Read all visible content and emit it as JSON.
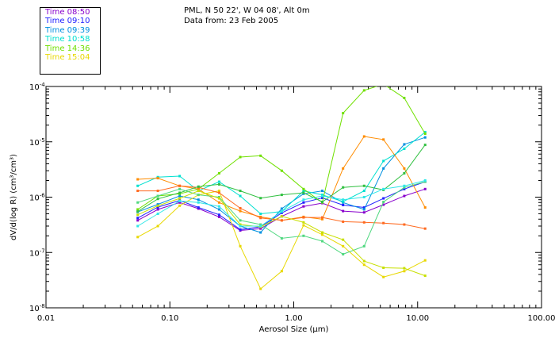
{
  "header": {
    "location": "PML, N 50 22', W 04 08', Alt 0m",
    "date_text": "Data from: 23 Feb 2005"
  },
  "chart_data": {
    "type": "line",
    "title": "PML, N 50 22', W 04 08', Alt 0m",
    "subtitle": "Data from: 23 Feb 2005",
    "xlabel": "Aerosol Size (μm)",
    "ylabel": "dV/d(log R) (cm³/cm³)",
    "x_scale": "log",
    "y_scale": "log",
    "xlim": [
      0.01,
      100
    ],
    "ylim": [
      1e-08,
      0.0001
    ],
    "x_tick_values": [
      0.01,
      0.1,
      1,
      10,
      100
    ],
    "x_tick_labels": [
      "0.01",
      "0.10",
      "1.00",
      "10.00",
      "100.00"
    ],
    "y_tick_values": [
      1e-08,
      1e-07,
      1e-06,
      1e-05,
      0.0001
    ],
    "y_tick_exponents": [
      "-8",
      "-7",
      "-6",
      "-5",
      "-4"
    ],
    "y_tick_base": "10",
    "x": [
      0.055,
      0.08,
      0.12,
      0.17,
      0.25,
      0.37,
      0.54,
      0.8,
      1.2,
      1.7,
      2.5,
      3.7,
      5.3,
      7.8,
      11.5
    ],
    "series": [
      {
        "name": "Time 08:50",
        "color": "#8800cc",
        "values": [
          3.8e-07,
          6e-07,
          8e-07,
          6.2e-07,
          4.4e-07,
          2.5e-07,
          2.7e-07,
          4.5e-07,
          6.8e-07,
          7.8e-07,
          5.6e-07,
          5.3e-07,
          7.3e-07,
          1.05e-06,
          1.4e-06
        ]
      },
      {
        "name": "Time 09:10",
        "color": "#2020ff",
        "values": [
          4.2e-07,
          6.6e-07,
          8.7e-07,
          6.5e-07,
          4.8e-07,
          2.6e-07,
          2.9e-07,
          5.2e-07,
          8e-07,
          9.7e-07,
          7.2e-07,
          6.5e-07,
          9.5e-07,
          1.4e-06,
          1.9e-06
        ]
      },
      {
        "name": "Time 09:39",
        "color": "#0090e0",
        "values": [
          5.4e-07,
          7.4e-07,
          1.05e-06,
          9e-07,
          6e-07,
          3e-07,
          2.3e-07,
          6.2e-07,
          1.15e-06,
          1.3e-06,
          8e-07,
          6e-07,
          3.3e-06,
          9e-06,
          1.2e-05
        ]
      },
      {
        "name": "Time 10:58",
        "color": "#00e0d0",
        "values": [
          1.6e-06,
          2.3e-06,
          2.4e-06,
          1.3e-06,
          1.9e-06,
          1.05e-06,
          5e-07,
          5.5e-07,
          1.3e-06,
          1.1e-06,
          8.3e-07,
          1.3e-06,
          4.5e-06,
          7.5e-06,
          1.5e-05
        ]
      },
      {
        "name": "Time 14:36",
        "color": "#70e000",
        "values": [
          6e-07,
          1.05e-06,
          1.15e-06,
          1.4e-06,
          2.7e-06,
          5.3e-06,
          5.6e-06,
          3e-06,
          1.4e-06,
          8e-07,
          3.3e-05,
          8.5e-05,
          0.00011,
          6.2e-05,
          1.4e-05
        ]
      },
      {
        "name": "Time 15:04",
        "color": "#e8d800",
        "values": [
          1.9e-07,
          3e-07,
          7e-07,
          1.1e-06,
          1.3e-06,
          1.3e-07,
          2.2e-08,
          4.6e-08,
          3.1e-07,
          2.1e-07,
          1.3e-07,
          6e-08,
          3.6e-08,
          4.6e-08,
          7.2e-08
        ]
      },
      {
        "name": "",
        "color": "#ff8c00",
        "values": [
          2.1e-06,
          2.2e-06,
          1.6e-06,
          1.4e-06,
          8e-07,
          5.6e-07,
          4.4e-07,
          3.8e-07,
          4.4e-07,
          4e-07,
          3.3e-06,
          1.25e-05,
          1.1e-05,
          3.3e-06,
          6.5e-07
        ]
      },
      {
        "name": "",
        "color": "#ff6a20",
        "values": [
          1.3e-06,
          1.3e-06,
          1.6e-06,
          1.5e-06,
          1.2e-06,
          6.3e-07,
          4.2e-07,
          3.8e-07,
          4.3e-07,
          4.3e-07,
          3.6e-07,
          3.5e-07,
          3.4e-07,
          3.2e-07,
          2.7e-07
        ]
      },
      {
        "name": "",
        "color": "#30c040",
        "values": [
          5.5e-07,
          9.3e-07,
          1.2e-06,
          1.55e-06,
          1.7e-06,
          1.3e-06,
          9.6e-07,
          1.1e-06,
          1.2e-06,
          8.2e-07,
          1.5e-06,
          1.6e-06,
          1.35e-06,
          2.7e-06,
          8.8e-06
        ]
      },
      {
        "name": "",
        "color": "#50d880",
        "values": [
          8e-07,
          1.05e-06,
          1.4e-06,
          1.1e-06,
          1e-06,
          3.8e-07,
          3.2e-07,
          1.8e-07,
          2e-07,
          1.6e-07,
          9.3e-08,
          1.3e-07,
          8.2e-07,
          1.5e-06,
          1.9e-06
        ]
      },
      {
        "name": "",
        "color": "#c8e000",
        "values": [
          4.8e-07,
          7e-07,
          9.5e-07,
          1.3e-06,
          9.5e-07,
          3.2e-07,
          2.9e-07,
          4.5e-07,
          3.5e-07,
          2.3e-07,
          1.7e-07,
          7e-08,
          5.3e-08,
          5.2e-08,
          3.8e-08
        ]
      },
      {
        "name": "",
        "color": "#30e8e8",
        "values": [
          3e-07,
          5e-07,
          8.5e-07,
          8e-07,
          6.8e-07,
          3e-07,
          3e-07,
          5.5e-07,
          9e-07,
          1.05e-06,
          9e-07,
          1e-06,
          1.4e-06,
          1.6e-06,
          2e-06
        ]
      }
    ]
  }
}
